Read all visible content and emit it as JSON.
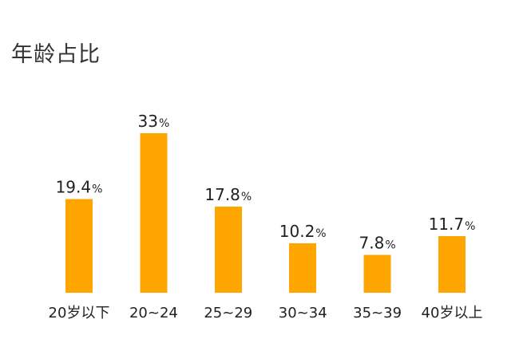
{
  "chart_data": {
    "type": "bar",
    "title": "年龄占比",
    "xlabel": "",
    "ylabel": "",
    "categories": [
      "20岁以下",
      "20~24",
      "25~29",
      "30~34",
      "35~39",
      "40岁以上"
    ],
    "values": [
      19.4,
      33,
      17.8,
      10.2,
      7.8,
      11.7
    ],
    "value_labels": [
      "19.4%",
      "33%",
      "17.8%",
      "10.2%",
      "7.8%",
      "11.7%"
    ],
    "unit": "%",
    "ylim": [
      0,
      33
    ],
    "grid": false,
    "legend": "none",
    "bar_color": "#FFA500"
  }
}
